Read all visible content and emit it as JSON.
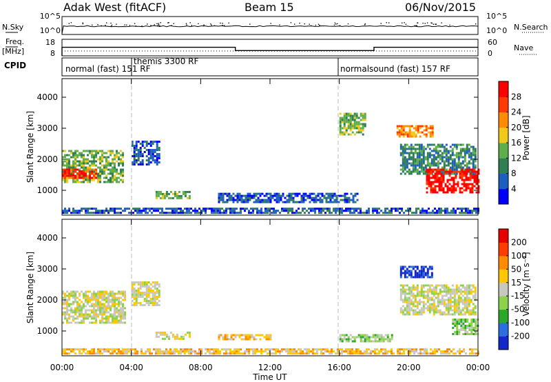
{
  "header": {
    "station": "Adak West (fitACF)",
    "beam": "Beam 15",
    "date": "06/Nov/2015"
  },
  "noise_panel": {
    "left_label": "N.Sky",
    "right_label": "N.Search",
    "yticks_left": [
      "10^5",
      "10^0"
    ],
    "yticks_right": [
      "10^5",
      "10^0"
    ]
  },
  "freq_panel": {
    "label_top": "Freq.",
    "label_unit": "[MHz]",
    "right_label": "Nave",
    "yticks_left": [
      "18",
      "8"
    ],
    "yticks_right": [
      "60",
      "0"
    ],
    "freq_steps": [
      {
        "from": 0.0,
        "to": 10.0,
        "mhz": 13.2
      },
      {
        "from": 10.0,
        "to": 18.0,
        "mhz": 11.2
      },
      {
        "from": 18.0,
        "to": 24.0,
        "mhz": 13.2
      }
    ]
  },
  "cpid_panel": {
    "label": "CPID",
    "modes": [
      {
        "name": "normal (fast) 151 RF",
        "start_hour": 0
      },
      {
        "name": "themis 3300 RF",
        "start_hour": 4
      },
      {
        "name": "normalsound (fast) 157 RF",
        "start_hour": 16
      }
    ]
  },
  "x_axis": {
    "title": "Time UT",
    "ticks": [
      "00:00",
      "04:00",
      "08:00",
      "12:00",
      "16:00",
      "20:00",
      "00:00"
    ],
    "range_hours": [
      0,
      24
    ]
  },
  "power_panel": {
    "ylabel": "Slant Range [km]",
    "yticks": [
      "1000",
      "2000",
      "3000",
      "4000"
    ],
    "colorbar_title": "Power [dB]",
    "colorbar_ticks": [
      "4",
      "8",
      "12",
      "16",
      "20",
      "24",
      "28"
    ],
    "colors": [
      "#0000ff",
      "#1e5fbe",
      "#2f7f52",
      "#5fae4b",
      "#f2c81a",
      "#ff8c00",
      "#ff3a00",
      "#ff0000"
    ]
  },
  "velocity_panel": {
    "ylabel": "Slant Range [km]",
    "yticks": [
      "1000",
      "2000",
      "3000",
      "4000"
    ],
    "colorbar_title": "Velocity [m s⁻¹]",
    "colorbar_ticks": [
      "200",
      "100",
      "50",
      "15",
      "-15",
      "-50",
      "-100",
      "-200"
    ],
    "colors": [
      "#1428c8",
      "#2a6ee0",
      "#2aa82a",
      "#8cd24b",
      "#c8c8c0",
      "#ffc800",
      "#ff8c00",
      "#ff3c00",
      "#e60000"
    ]
  },
  "chart_data": {
    "type": "heatmap",
    "x_unit": "hours UT",
    "y_unit": "slant range km",
    "ylim": [
      200,
      4600
    ],
    "xlim": [
      0,
      24
    ],
    "power_regions": [
      {
        "t0": 0.0,
        "t1": 3.5,
        "r0": 1250,
        "r1": 2300,
        "level": 3
      },
      {
        "t0": 0.0,
        "t1": 2.0,
        "r0": 1400,
        "r1": 1700,
        "level": 6
      },
      {
        "t0": 0.0,
        "t1": 1.2,
        "r0": 1500,
        "r1": 1650,
        "level": 7
      },
      {
        "t0": 4.0,
        "t1": 5.6,
        "r0": 1800,
        "r1": 2600,
        "level": 1
      },
      {
        "t0": 5.4,
        "t1": 7.4,
        "r0": 750,
        "r1": 980,
        "level": 3
      },
      {
        "t0": 9.0,
        "t1": 17.0,
        "r0": 640,
        "r1": 920,
        "level": 1
      },
      {
        "t0": 16.0,
        "t1": 17.5,
        "r0": 2800,
        "r1": 3500,
        "level": 3
      },
      {
        "t0": 19.3,
        "t1": 21.4,
        "r0": 2700,
        "r1": 3100,
        "level": 5
      },
      {
        "t0": 19.5,
        "t1": 23.8,
        "r0": 1500,
        "r1": 2500,
        "level": 2
      },
      {
        "t0": 21.0,
        "t1": 24.0,
        "r0": 900,
        "r1": 1700,
        "level": 7
      },
      {
        "t0": 0.0,
        "t1": 24.0,
        "r0": 240,
        "r1": 440,
        "level": 1
      }
    ],
    "velocity_regions": [
      {
        "t0": 0.0,
        "t1": 3.6,
        "r0": 1250,
        "r1": 2300,
        "bin": 4
      },
      {
        "t0": 4.0,
        "t1": 5.6,
        "r0": 1800,
        "r1": 2600,
        "bin": 4
      },
      {
        "t0": 5.4,
        "t1": 7.4,
        "r0": 750,
        "r1": 980,
        "bin": 4
      },
      {
        "t0": 9.0,
        "t1": 12.0,
        "r0": 700,
        "r1": 900,
        "bin": 5
      },
      {
        "t0": 16.0,
        "t1": 19.0,
        "r0": 640,
        "r1": 900,
        "bin": 3
      },
      {
        "t0": 19.5,
        "t1": 21.4,
        "r0": 2700,
        "r1": 3100,
        "bin": 0
      },
      {
        "t0": 19.5,
        "t1": 23.8,
        "r0": 1500,
        "r1": 2500,
        "bin": 4
      },
      {
        "t0": 22.5,
        "t1": 24.0,
        "r0": 900,
        "r1": 1400,
        "bin": 3
      },
      {
        "t0": 0.0,
        "t1": 24.0,
        "r0": 240,
        "r1": 440,
        "bin": 5
      }
    ]
  }
}
